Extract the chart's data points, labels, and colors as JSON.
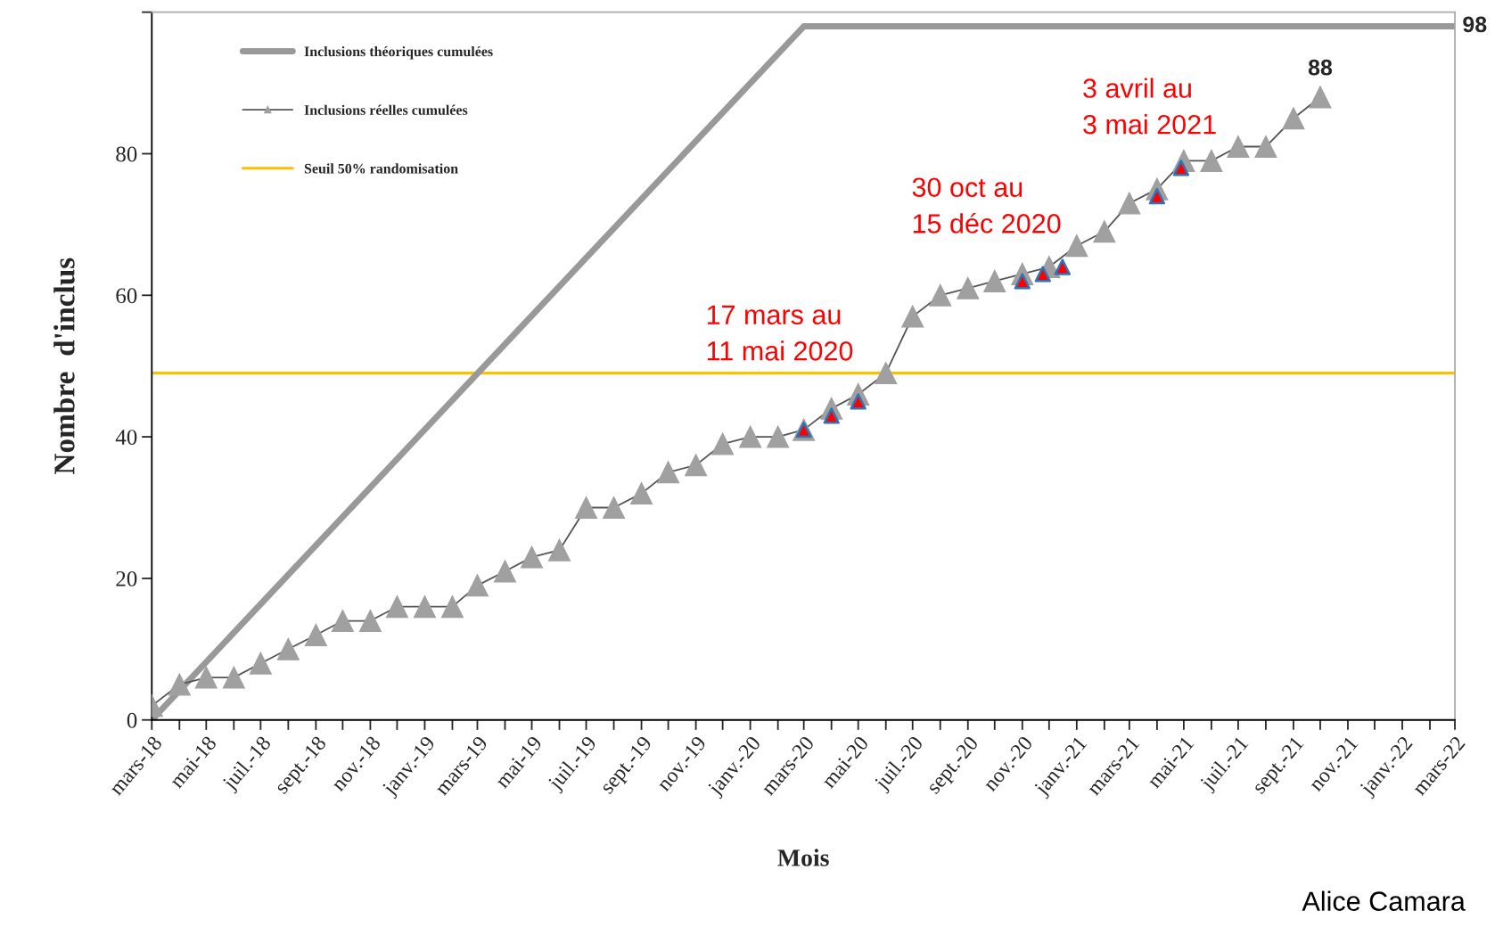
{
  "chart_data": {
    "type": "line",
    "xlabel": "Mois",
    "ylabel": "Nombre  d'inclus",
    "xlim": [
      "2018-03",
      "2022-03"
    ],
    "ylim": [
      0,
      100
    ],
    "yticks": [
      0,
      20,
      40,
      60,
      80,
      {
        "value": 100,
        "label": null
      }
    ],
    "xticks": [
      {
        "value": "2018-03",
        "label": "mars-18"
      },
      {
        "value": "2018-04",
        "label": null
      },
      {
        "value": "2018-05",
        "label": "mai-18"
      },
      {
        "value": "2018-06",
        "label": null
      },
      {
        "value": "2018-07",
        "label": "juil.-18"
      },
      {
        "value": "2018-08",
        "label": null
      },
      {
        "value": "2018-09",
        "label": "sept.-18"
      },
      {
        "value": "2018-10",
        "label": null
      },
      {
        "value": "2018-11",
        "label": "nov.-18"
      },
      {
        "value": "2018-12",
        "label": null
      },
      {
        "value": "2019-01",
        "label": "janv.-19"
      },
      {
        "value": "2019-02",
        "label": null
      },
      {
        "value": "2019-03",
        "label": "mars-19"
      },
      {
        "value": "2019-04",
        "label": null
      },
      {
        "value": "2019-05",
        "label": "mai-19"
      },
      {
        "value": "2019-06",
        "label": null
      },
      {
        "value": "2019-07",
        "label": "juil.-19"
      },
      {
        "value": "2019-08",
        "label": null
      },
      {
        "value": "2019-09",
        "label": "sept.-19"
      },
      {
        "value": "2019-10",
        "label": null
      },
      {
        "value": "2019-11",
        "label": "nov.-19"
      },
      {
        "value": "2019-12",
        "label": null
      },
      {
        "value": "2020-01",
        "label": "janv.-20"
      },
      {
        "value": "2020-02",
        "label": null
      },
      {
        "value": "2020-03",
        "label": "mars-20"
      },
      {
        "value": "2020-04",
        "label": null
      },
      {
        "value": "2020-05",
        "label": "mai-20"
      },
      {
        "value": "2020-06",
        "label": null
      },
      {
        "value": "2020-07",
        "label": "juil.-20"
      },
      {
        "value": "2020-08",
        "label": null
      },
      {
        "value": "2020-09",
        "label": "sept.-20"
      },
      {
        "value": "2020-10",
        "label": null
      },
      {
        "value": "2020-11",
        "label": "nov.-20"
      },
      {
        "value": "2020-12",
        "label": null
      },
      {
        "value": "2021-01",
        "label": "janv.-21"
      },
      {
        "value": "2021-02",
        "label": null
      },
      {
        "value": "2021-03",
        "label": "mars-21"
      },
      {
        "value": "2021-04",
        "label": null
      },
      {
        "value": "2021-05",
        "label": "mai-21"
      },
      {
        "value": "2021-06",
        "label": null
      },
      {
        "value": "2021-07",
        "label": "juil.-21"
      },
      {
        "value": "2021-08",
        "label": null
      },
      {
        "value": "2021-09",
        "label": "sept.-21"
      },
      {
        "value": "2021-10",
        "label": null
      },
      {
        "value": "2021-11",
        "label": "nov.-21"
      },
      {
        "value": "2021-12",
        "label": null
      },
      {
        "value": "2022-01",
        "label": "janv.-22"
      },
      {
        "value": "2022-02",
        "label": null
      },
      {
        "value": "2022-03",
        "label": "mars-22"
      }
    ],
    "legend": "top left",
    "grid": false,
    "series": [
      {
        "name": "Inclusions théoriques cumulées",
        "color": "#999999",
        "marker": "none",
        "x": [
          "2018-03",
          "2020-03",
          "2022-03"
        ],
        "values": [
          0,
          98,
          98
        ],
        "value_labels": [
          null,
          null,
          "98"
        ]
      },
      {
        "name": "Inclusions réelles cumulées",
        "color": "#a0a0a0",
        "marker": "triangle",
        "x": [
          "2018-03",
          "2018-04",
          "2018-05",
          "2018-06",
          "2018-07",
          "2018-08",
          "2018-09",
          "2018-10",
          "2018-11",
          "2018-12",
          "2019-01",
          "2019-02",
          "2019-03",
          "2019-04",
          "2019-05",
          "2019-06",
          "2019-07",
          "2019-08",
          "2019-09",
          "2019-10",
          "2019-11",
          "2019-12",
          "2020-01",
          "2020-02",
          "2020-03",
          "2020-04",
          "2020-05",
          "2020-06",
          "2020-07",
          "2020-08",
          "2020-09",
          "2020-10",
          "2020-11",
          "2020-12",
          "2021-01",
          "2021-02",
          "2021-03",
          "2021-04",
          "2021-05",
          "2021-06",
          "2021-07",
          "2021-08",
          "2021-09",
          "2021-10"
        ],
        "values": [
          2,
          5,
          6,
          6,
          8,
          10,
          12,
          14,
          14,
          16,
          16,
          16,
          19,
          21,
          23,
          24,
          30,
          30,
          32,
          35,
          36,
          39,
          40,
          40,
          41,
          44,
          46,
          49,
          57,
          60,
          61,
          62,
          63,
          64,
          67,
          69,
          73,
          75,
          79,
          79,
          81,
          81,
          85,
          88
        ],
        "value_labels": [
          null,
          null,
          null,
          null,
          null,
          null,
          null,
          null,
          null,
          null,
          null,
          null,
          null,
          null,
          null,
          null,
          null,
          null,
          null,
          null,
          null,
          null,
          null,
          null,
          null,
          null,
          null,
          null,
          null,
          null,
          null,
          null,
          null,
          null,
          null,
          null,
          null,
          null,
          null,
          null,
          null,
          null,
          null,
          "88"
        ]
      },
      {
        "type": "scatter",
        "color": "#ff0000",
        "marker": "triangle",
        "x": [
          "2020-03-01",
          "2020-04-01",
          "2020-05-01",
          "2020-11-01",
          "2020-11-24",
          "2020-12-16",
          "2021-04-01",
          "2021-04-28"
        ],
        "values": [
          41,
          43,
          45,
          62,
          63,
          64,
          74,
          78
        ]
      }
    ],
    "ref_lines": [
      {
        "axis": "y",
        "value": 49,
        "label": "Seuil 50% randomisation",
        "color": "#ffc000",
        "line_style": "solid"
      }
    ],
    "annotations": [
      "17 mars au\n11 mai 2020",
      "30 oct au\n15 déc 2020",
      "3 avril au\n3 mai 2021",
      "Alice Camara"
    ]
  }
}
